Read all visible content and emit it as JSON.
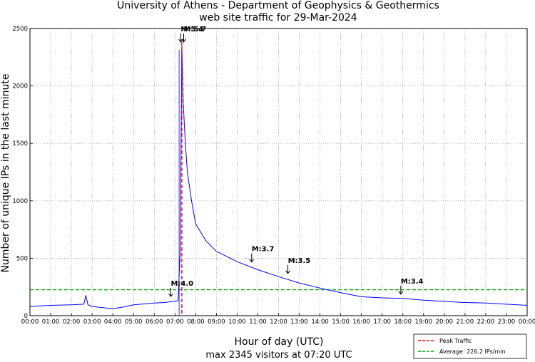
{
  "chart_data": {
    "type": "line",
    "title_line1": "University of Athens - Department of Geophysics & Geothermics",
    "title_line2": "web site traffic for 29-Mar-2024",
    "xlabel": "Hour of day (UTC)",
    "subtitle": "max 2345 visitors at 07:20 UTC",
    "ylabel": "Number of unique IPs in the last minute",
    "xlim": [
      0,
      24
    ],
    "ylim": [
      0,
      2500
    ],
    "yticks": [
      0,
      500,
      1000,
      1500,
      2000,
      2500
    ],
    "xtick_labels": [
      "00:00",
      "01:00",
      "02:00",
      "03:00",
      "04:00",
      "05:00",
      "06:00",
      "07:00",
      "08:00",
      "09:00",
      "10:00",
      "11:00",
      "12:00",
      "13:00",
      "14:00",
      "15:00",
      "16:00",
      "17:00",
      "18:00",
      "19:00",
      "20:00",
      "21:00",
      "22:00",
      "23:00",
      "00:00"
    ],
    "grid": true,
    "series": [
      {
        "name": "",
        "color": "#0000ff",
        "x": [
          0,
          1,
          2,
          2.6,
          2.7,
          2.8,
          3,
          4,
          4.5,
          5,
          6,
          6.5,
          6.9,
          7.0,
          7.15,
          7.25,
          7.33,
          7.4,
          7.5,
          7.6,
          7.8,
          8,
          8.5,
          9,
          10,
          11,
          12,
          13,
          14,
          15,
          16,
          17,
          18,
          19,
          20,
          21,
          22,
          23,
          24
        ],
        "y": [
          80,
          90,
          95,
          100,
          175,
          95,
          80,
          60,
          75,
          95,
          110,
          115,
          125,
          125,
          130,
          550,
          2345,
          1850,
          1500,
          1250,
          1000,
          800,
          650,
          560,
          470,
          400,
          340,
          285,
          240,
          200,
          165,
          155,
          150,
          135,
          125,
          115,
          110,
          100,
          90
        ]
      }
    ],
    "peak": {
      "x": 7.33,
      "y": 2345,
      "color": "#ff0000",
      "label": "Peak Traffic"
    },
    "average": {
      "y": 226.2,
      "color": "#00aa00",
      "label": "Average: 226.2 IPs/min"
    },
    "event_lines": [
      {
        "x": 7.2,
        "color": "#0000ff"
      }
    ],
    "annotations": [
      {
        "x": 6.8,
        "y": 130,
        "text": "M:4.0"
      },
      {
        "x": 7.28,
        "y": 2345,
        "text": "M:5.4"
      },
      {
        "x": 7.42,
        "y": 2345,
        "text": "M:5.7"
      },
      {
        "x": 10.7,
        "y": 430,
        "text": "M:3.7"
      },
      {
        "x": 12.45,
        "y": 330,
        "text": "M:3.5"
      },
      {
        "x": 17.9,
        "y": 150,
        "text": "M:3.4"
      }
    ],
    "legend": {
      "placement": "bottom-right"
    }
  }
}
